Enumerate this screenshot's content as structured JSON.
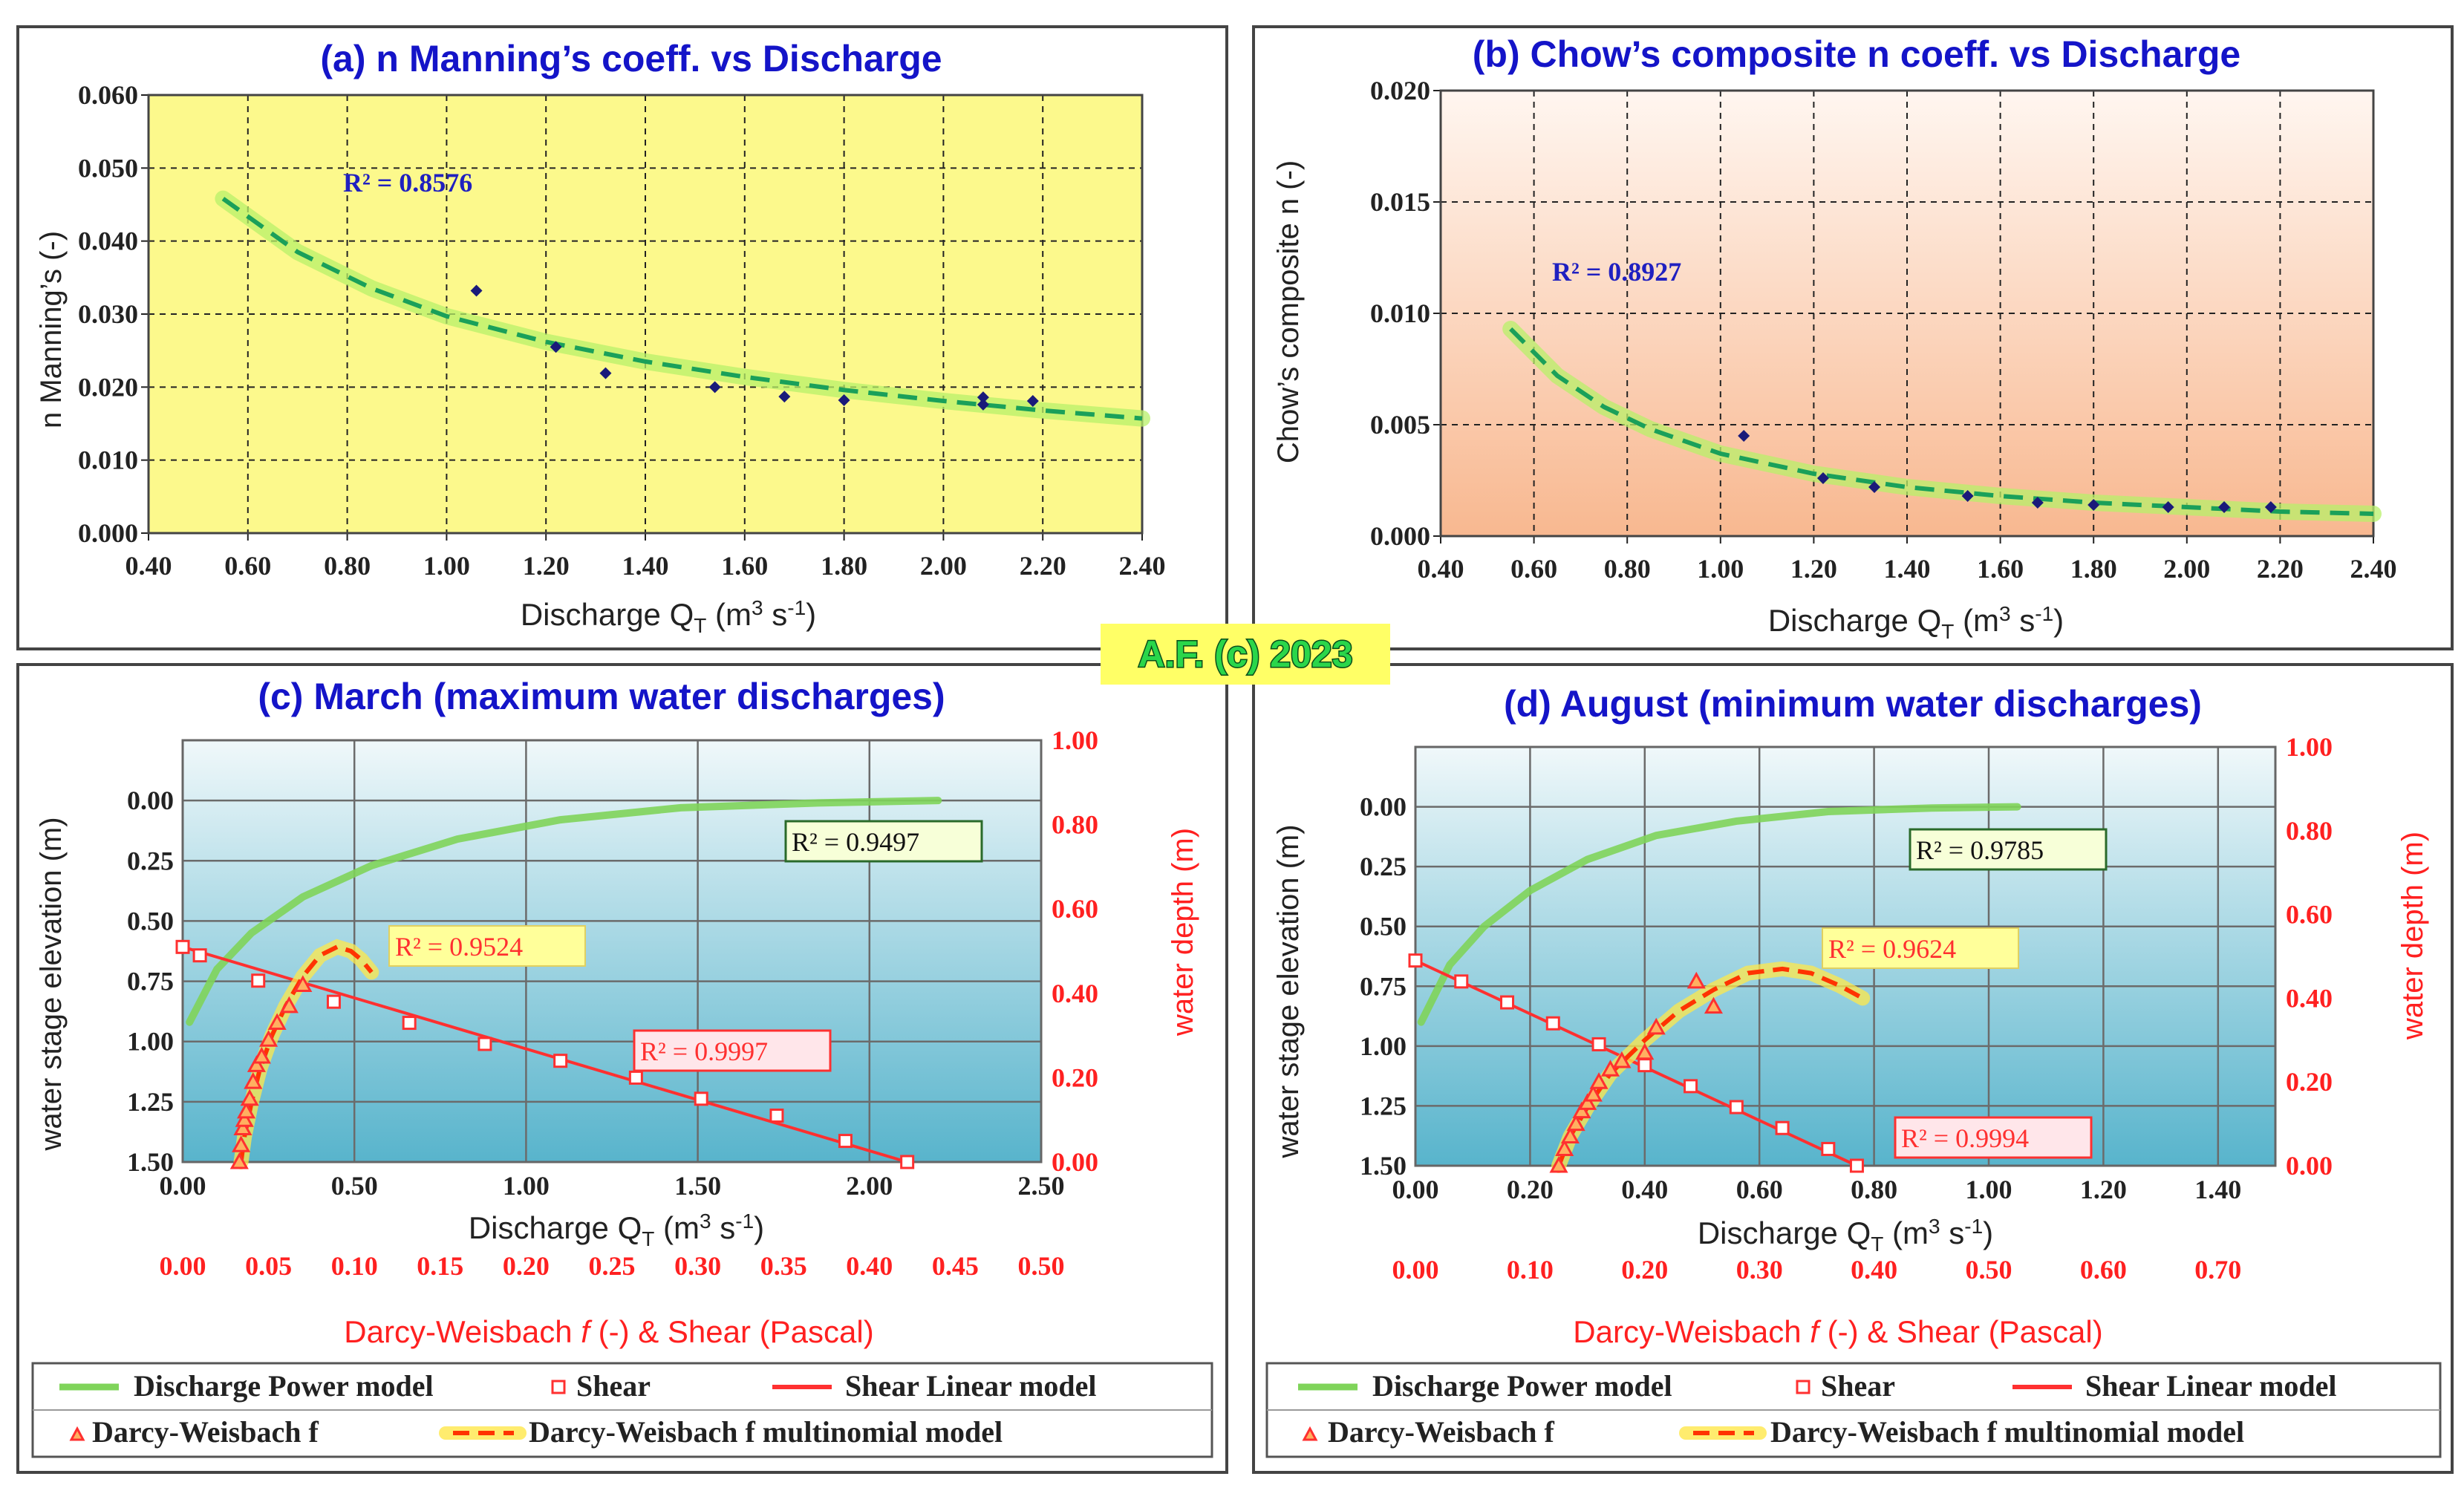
{
  "badge": "A.F. (c) 2023",
  "colors": {
    "title": "#1414c8",
    "dark_label": "#222222",
    "red_axis": "#ff2020",
    "trend_green": "#1aa05a",
    "trend_glow": "#b8f06a",
    "discharge_model": "#7fd45a",
    "shear_line": "#ff3030",
    "dw_model": "#ff3300",
    "dw_model_glow": "#ffe84a",
    "badge_bg": "#ffff66",
    "badge_text": "#2ad64a",
    "panel_a_bg": "#fcf98c",
    "panel_b_bg_top": "#fff6f0",
    "panel_b_bg_bottom": "#f8b890",
    "panel_cd_bg_top": "#f0f8fa",
    "panel_cd_bg_bottom": "#58b4cc"
  },
  "chart_data": [
    {
      "id": "a",
      "type": "scatter",
      "title": "(a) n Manning’s coeff. vs Discharge",
      "xlabel": "Discharge Q",
      "xlabel_sub": "T",
      "xlabel_unit": " (m",
      "xlabel_unit_sup": "3",
      "xlabel_unit_end": " s",
      "xlabel_unit_sup2": "-1",
      "xlabel_close": ")",
      "ylabel": "n Manning’s (-)",
      "xlim": [
        0.4,
        2.4
      ],
      "ylim": [
        0.0,
        0.06
      ],
      "xticks": [
        "0.40",
        "0.60",
        "0.80",
        "1.00",
        "1.20",
        "1.40",
        "1.60",
        "1.80",
        "2.00",
        "2.20",
        "2.40"
      ],
      "yticks": [
        "0.000",
        "0.010",
        "0.020",
        "0.030",
        "0.040",
        "0.050",
        "0.060"
      ],
      "r2_label": "R² = 0.8576",
      "points": {
        "x": [
          1.06,
          1.22,
          1.32,
          1.54,
          1.68,
          1.8,
          2.08,
          2.08,
          2.18
        ],
        "y": [
          0.0332,
          0.0255,
          0.0219,
          0.02,
          0.0187,
          0.0182,
          0.0186,
          0.0176,
          0.0181
        ]
      },
      "trend": {
        "x": [
          0.55,
          0.7,
          0.85,
          1.0,
          1.2,
          1.4,
          1.6,
          1.8,
          2.0,
          2.2,
          2.4
        ],
        "y": [
          0.0458,
          0.0385,
          0.0335,
          0.0297,
          0.0262,
          0.0235,
          0.0214,
          0.0196,
          0.0181,
          0.0168,
          0.0157
        ]
      }
    },
    {
      "id": "b",
      "type": "scatter",
      "title": "(b) Chow’s composite n coeff. vs Discharge",
      "xlabel": "Discharge Q",
      "xlabel_sub": "T",
      "xlabel_unit": " (m",
      "xlabel_unit_sup": "3",
      "xlabel_unit_end": " s",
      "xlabel_unit_sup2": "-1",
      "xlabel_close": ")",
      "ylabel": "Chow’s composite n (-)",
      "xlim": [
        0.4,
        2.4
      ],
      "ylim": [
        0.0,
        0.02
      ],
      "xticks": [
        "0.40",
        "0.60",
        "0.80",
        "1.00",
        "1.20",
        "1.40",
        "1.60",
        "1.80",
        "2.00",
        "2.20",
        "2.40"
      ],
      "yticks": [
        "0.000",
        "0.005",
        "0.010",
        "0.015",
        "0.020"
      ],
      "r2_label": "R² = 0.8927",
      "points": {
        "x": [
          1.05,
          1.22,
          1.33,
          1.53,
          1.68,
          1.8,
          1.96,
          2.08,
          2.18
        ],
        "y": [
          0.0045,
          0.0026,
          0.0022,
          0.0018,
          0.0015,
          0.0014,
          0.0013,
          0.0013,
          0.0013
        ]
      },
      "trend": {
        "x": [
          0.55,
          0.65,
          0.75,
          0.85,
          1.0,
          1.2,
          1.4,
          1.6,
          1.8,
          2.0,
          2.2,
          2.4
        ],
        "y": [
          0.0093,
          0.0072,
          0.0058,
          0.0048,
          0.0037,
          0.0028,
          0.0022,
          0.0018,
          0.0015,
          0.0013,
          0.0011,
          0.001
        ]
      }
    },
    {
      "id": "c",
      "type": "line",
      "title": "(c) March (maximum water discharges)",
      "ylabel_left": "water stage elevation (m)",
      "ylabel_right": "water depth (m)",
      "xlabel_top": "Discharge Q",
      "xlabel_top_sub": "T",
      "xlabel_top_unit": " (m",
      "xlabel_top_unit_sup": "3",
      "xlabel_top_unit_end": " s",
      "xlabel_top_unit_sup2": "-1",
      "xlabel_top_close": ")",
      "xlabel_bottom_prefix": "Darcy-Weisbach ",
      "xlabel_bottom_f": "f",
      "xlabel_bottom_suffix": " (-)  &  Shear (Pascal)",
      "xlim_top": [
        0.0,
        2.5
      ],
      "xlim_bottom": [
        0.0,
        0.5
      ],
      "ylim_left": [
        -0.25,
        1.5
      ],
      "ylim_right": [
        0.0,
        1.0
      ],
      "yticks_left": [
        "0.00",
        "0.25",
        "0.50",
        "0.75",
        "1.00",
        "1.25",
        "1.50"
      ],
      "yticks_right": [
        "0.00",
        "0.20",
        "0.40",
        "0.60",
        "0.80",
        "1.00"
      ],
      "xticks_top": [
        "0.00",
        "0.50",
        "1.00",
        "1.50",
        "2.00",
        "2.50"
      ],
      "xticks_bottom": [
        "0.00",
        "0.05",
        "0.10",
        "0.15",
        "0.20",
        "0.25",
        "0.30",
        "0.35",
        "0.40",
        "0.45",
        "0.50"
      ],
      "discharge_model": {
        "x": [
          0.02,
          0.1,
          0.2,
          0.35,
          0.55,
          0.8,
          1.1,
          1.45,
          1.85,
          2.2
        ],
        "y": [
          0.92,
          0.7,
          0.55,
          0.4,
          0.27,
          0.16,
          0.08,
          0.03,
          0.01,
          0.0
        ],
        "r2_label": "R² = 0.9497"
      },
      "shear": {
        "x": [
          0.0,
          0.01,
          0.044,
          0.088,
          0.132,
          0.176,
          0.22,
          0.264,
          0.302,
          0.346,
          0.386,
          0.422
        ],
        "y": [
          0.51,
          0.49,
          0.43,
          0.38,
          0.33,
          0.28,
          0.24,
          0.2,
          0.15,
          0.11,
          0.05,
          0.0
        ],
        "r2_label": "R² = 0.9997"
      },
      "darcy_weisbach": {
        "x": [
          0.033,
          0.034,
          0.035,
          0.036,
          0.037,
          0.039,
          0.041,
          0.043,
          0.046,
          0.05,
          0.055,
          0.062,
          0.07
        ],
        "y": [
          0.0,
          0.04,
          0.08,
          0.1,
          0.12,
          0.15,
          0.19,
          0.23,
          0.25,
          0.29,
          0.33,
          0.37,
          0.42
        ]
      },
      "dw_model": {
        "x": [
          0.034,
          0.036,
          0.04,
          0.045,
          0.052,
          0.06,
          0.07,
          0.08,
          0.09,
          0.098,
          0.104,
          0.11
        ],
        "y": [
          0.0,
          0.06,
          0.14,
          0.22,
          0.3,
          0.37,
          0.44,
          0.49,
          0.51,
          0.5,
          0.48,
          0.45
        ],
        "r2_label": "R² = 0.9524"
      }
    },
    {
      "id": "d",
      "type": "line",
      "title": "(d) August (minimum water discharges)",
      "ylabel_left": "water stage elevation (m)",
      "ylabel_right": "water depth (m)",
      "xlabel_top": "Discharge Q",
      "xlabel_top_sub": "T",
      "xlabel_top_unit": " (m",
      "xlabel_top_unit_sup": "3",
      "xlabel_top_unit_end": " s",
      "xlabel_top_unit_sup2": "-1",
      "xlabel_top_close": ")",
      "xlabel_bottom_prefix": "Darcy-Weisbach ",
      "xlabel_bottom_f": "f",
      "xlabel_bottom_suffix": " (-)  &  Shear (Pascal)",
      "xlim_top": [
        0.0,
        1.5
      ],
      "xlim_bottom": [
        0.0,
        0.75
      ],
      "ylim_left": [
        -0.25,
        1.5
      ],
      "ylim_right": [
        0.0,
        1.0
      ],
      "yticks_left": [
        "0.00",
        "0.25",
        "0.50",
        "0.75",
        "1.00",
        "1.25",
        "1.50"
      ],
      "yticks_right": [
        "0.00",
        "0.20",
        "0.40",
        "0.60",
        "0.80",
        "1.00"
      ],
      "xticks_top": [
        "0.00",
        "0.20",
        "0.40",
        "0.60",
        "0.80",
        "1.00",
        "1.20",
        "1.40"
      ],
      "xticks_bottom": [
        "0.00",
        "0.10",
        "0.20",
        "0.30",
        "0.40",
        "0.50",
        "0.60",
        "0.70"
      ],
      "discharge_model": {
        "x": [
          0.01,
          0.06,
          0.12,
          0.2,
          0.3,
          0.42,
          0.56,
          0.72,
          0.9,
          1.05
        ],
        "y": [
          0.9,
          0.66,
          0.5,
          0.35,
          0.22,
          0.12,
          0.06,
          0.02,
          0.005,
          0.0
        ],
        "r2_label": "R² = 0.9785"
      },
      "shear": {
        "x": [
          0.0,
          0.04,
          0.08,
          0.12,
          0.16,
          0.2,
          0.24,
          0.28,
          0.32,
          0.36,
          0.385
        ],
        "y": [
          0.49,
          0.44,
          0.39,
          0.34,
          0.29,
          0.24,
          0.19,
          0.14,
          0.09,
          0.04,
          0.0
        ],
        "r2_label": "R² = 0.9994"
      },
      "darcy_weisbach": {
        "x": [
          0.125,
          0.13,
          0.135,
          0.14,
          0.145,
          0.15,
          0.155,
          0.16,
          0.17,
          0.18,
          0.2,
          0.21,
          0.245,
          0.26
        ],
        "y": [
          0.0,
          0.04,
          0.07,
          0.1,
          0.13,
          0.15,
          0.17,
          0.2,
          0.23,
          0.25,
          0.27,
          0.33,
          0.44,
          0.38
        ]
      },
      "dw_model": {
        "x": [
          0.125,
          0.135,
          0.15,
          0.17,
          0.2,
          0.23,
          0.26,
          0.29,
          0.32,
          0.345,
          0.37,
          0.39
        ],
        "y": [
          0.0,
          0.07,
          0.14,
          0.22,
          0.3,
          0.37,
          0.42,
          0.46,
          0.47,
          0.46,
          0.43,
          0.4
        ],
        "r2_label": "R² = 0.9624"
      }
    }
  ],
  "legend": {
    "discharge_power": "Discharge Power model",
    "shear": "Shear",
    "shear_linear": "Shear Linear model",
    "darcy_weisbach": "Darcy-Weisbach f",
    "dw_multinomial": "Darcy-Weisbach f multinomial model"
  }
}
